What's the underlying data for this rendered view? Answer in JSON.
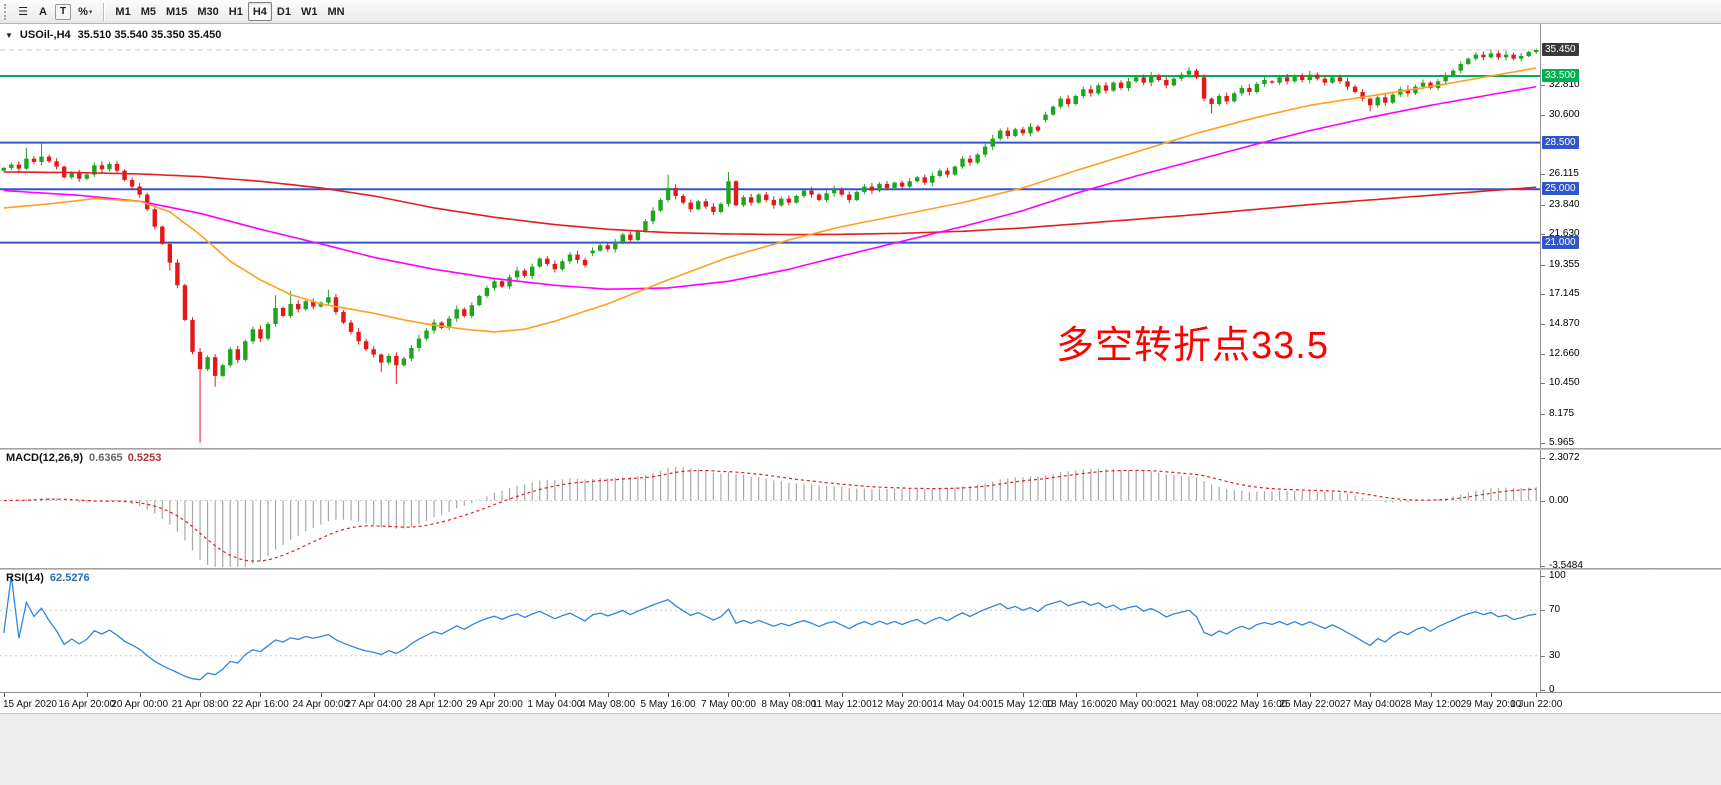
{
  "toolbar": {
    "icons": [
      {
        "name": "charts-list-icon",
        "glyph": "☰"
      },
      {
        "name": "font-tool-icon",
        "glyph": "A"
      },
      {
        "name": "text-label-tool-icon",
        "glyph": "T",
        "boxed": true
      },
      {
        "name": "percent-scale-icon",
        "glyph": "%",
        "caret": true
      }
    ],
    "timeframes": [
      "M1",
      "M5",
      "M15",
      "M30",
      "H1",
      "H4",
      "D1",
      "W1",
      "MN"
    ],
    "active_timeframe": "H4"
  },
  "chart": {
    "title": {
      "symbol_period": "USOil-,H4",
      "ohlc": "35.510 35.540 35.350 35.450"
    },
    "annotation": {
      "text": "多空转折点33.5",
      "color": "#ff0000"
    },
    "price_axis": {
      "labels": [
        "32.810",
        "30.600",
        "26.115",
        "23.840",
        "21.630",
        "19.355",
        "17.145",
        "14.870",
        "12.660",
        "10.450",
        "8.175",
        "5.965"
      ],
      "boxes": [
        {
          "text": "35.450",
          "color": "#3a3a3a",
          "name": "bid-price-badge"
        },
        {
          "text": "33.500",
          "color": "#00b050",
          "name": "green-level-badge"
        },
        {
          "text": "28.500",
          "color": "#3355cc",
          "name": "blue-level-badge"
        },
        {
          "text": "25.000",
          "color": "#3355cc",
          "name": "blue-level-badge"
        },
        {
          "text": "21.000",
          "color": "#3355cc",
          "name": "blue-level-badge"
        }
      ]
    }
  },
  "macd": {
    "label": "MACD(12,26,9)",
    "main_value": "0.6365",
    "signal_value": "0.5253",
    "axis_labels": [
      "2.3072",
      "0.00",
      "-3.5484"
    ]
  },
  "rsi": {
    "label": "RSI(14)",
    "value": "62.5276",
    "axis_labels": [
      "100",
      "70",
      "30",
      "0"
    ]
  },
  "time_axis": {
    "labels": [
      {
        "i": 0,
        "text": "15 Apr 2020"
      },
      {
        "i": 11,
        "text": "16 Apr 20:00"
      },
      {
        "i": 18,
        "text": "20 Apr 00:00"
      },
      {
        "i": 26,
        "text": "21 Apr 08:00"
      },
      {
        "i": 34,
        "text": "22 Apr 16:00"
      },
      {
        "i": 42,
        "text": "24 Apr 00:00"
      },
      {
        "i": 49,
        "text": "27 Apr 04:00"
      },
      {
        "i": 57,
        "text": "28 Apr 12:00"
      },
      {
        "i": 65,
        "text": "29 Apr 20:00"
      },
      {
        "i": 73,
        "text": "1 May 04:00"
      },
      {
        "i": 80,
        "text": "4 May 08:00"
      },
      {
        "i": 88,
        "text": "5 May 16:00"
      },
      {
        "i": 96,
        "text": "7 May 00:00"
      },
      {
        "i": 104,
        "text": "8 May 08:00"
      },
      {
        "i": 111,
        "text": "11 May 12:00"
      },
      {
        "i": 119,
        "text": "12 May 20:00"
      },
      {
        "i": 127,
        "text": "14 May 04:00"
      },
      {
        "i": 135,
        "text": "15 May 12:00"
      },
      {
        "i": 142,
        "text": "18 May 16:00"
      },
      {
        "i": 150,
        "text": "20 May 00:00"
      },
      {
        "i": 158,
        "text": "21 May 08:00"
      },
      {
        "i": 166,
        "text": "22 May 16:00"
      },
      {
        "i": 173,
        "text": "25 May 22:00"
      },
      {
        "i": 181,
        "text": "27 May 04:00"
      },
      {
        "i": 189,
        "text": "28 May 12:00"
      },
      {
        "i": 197,
        "text": "29 May 20:00"
      },
      {
        "i": 203,
        "text": "1 Jun 22:00"
      }
    ]
  },
  "chart_data": {
    "type": "candlestick",
    "symbol": "USOil-",
    "period": "H4",
    "price_top": 37.4,
    "price_bottom": 5.59,
    "bid": 35.45,
    "closes": [
      26.6,
      26.85,
      26.55,
      27.3,
      27.05,
      27.45,
      27.1,
      26.7,
      25.9,
      26.2,
      25.8,
      26.1,
      26.8,
      26.5,
      26.9,
      26.4,
      25.7,
      25.2,
      24.6,
      23.5,
      22.2,
      20.9,
      19.5,
      17.8,
      15.2,
      12.8,
      11.5,
      12.4,
      11.0,
      11.8,
      13.0,
      12.2,
      13.6,
      14.5,
      13.8,
      14.9,
      16.1,
      15.5,
      16.4,
      16.0,
      16.6,
      16.2,
      16.5,
      16.9,
      15.8,
      15.0,
      14.3,
      13.6,
      13.0,
      12.6,
      12.0,
      12.5,
      11.8,
      12.3,
      13.1,
      13.8,
      14.4,
      15.0,
      14.6,
      15.3,
      16.0,
      15.5,
      16.3,
      17.0,
      17.6,
      18.1,
      17.7,
      18.4,
      18.9,
      18.5,
      19.2,
      19.8,
      19.4,
      19.0,
      19.6,
      20.1,
      19.7,
      19.3,
      20.4,
      20.8,
      20.5,
      21.0,
      21.6,
      21.2,
      21.9,
      22.6,
      23.4,
      24.2,
      25.1,
      24.5,
      24.0,
      23.5,
      24.1,
      23.7,
      23.3,
      23.9,
      25.6,
      23.8,
      24.4,
      24.0,
      24.6,
      24.2,
      23.8,
      24.3,
      24.0,
      24.5,
      24.9,
      24.6,
      24.2,
      24.7,
      25.0,
      24.6,
      24.2,
      24.8,
      25.2,
      24.9,
      25.4,
      25.1,
      25.5,
      25.2,
      25.6,
      25.9,
      25.5,
      26.0,
      26.4,
      26.1,
      26.7,
      27.3,
      27.0,
      27.6,
      28.2,
      28.8,
      29.4,
      29.0,
      29.5,
      29.2,
      29.7,
      29.4,
      30.6,
      31.2,
      31.8,
      31.4,
      32.0,
      32.5,
      32.2,
      32.8,
      32.4,
      33.0,
      32.6,
      33.1,
      33.4,
      33.0,
      33.5,
      33.2,
      32.8,
      33.3,
      33.6,
      33.9,
      33.4,
      31.8,
      31.4,
      32.0,
      31.6,
      32.2,
      32.6,
      32.3,
      32.9,
      33.2,
      33.0,
      33.4,
      33.1,
      33.5,
      33.2,
      33.6,
      33.3,
      33.0,
      33.4,
      33.1,
      32.7,
      32.3,
      31.8,
      31.3,
      31.9,
      31.5,
      32.1,
      32.5,
      32.2,
      32.7,
      33.0,
      32.6,
      33.1,
      33.5,
      33.9,
      34.4,
      34.8,
      35.1,
      34.9,
      35.2,
      34.9,
      35.1,
      34.8,
      35.0,
      35.3,
      35.45
    ],
    "open_overrides": {
      "0": 26.4,
      "78": 20.2,
      "138": 30.2,
      "168": 33.1
    },
    "high_overrides": {
      "3": 28.1,
      "5": 28.5,
      "36": 17.05,
      "38": 17.35,
      "43": 17.45,
      "88": 26.1,
      "96": 26.3,
      "157": 34.15,
      "197": 35.5,
      "203": 35.55
    },
    "low_overrides": {
      "22": 18.9,
      "26": 6.0,
      "28": 10.2,
      "50": 11.3,
      "52": 10.4,
      "160": 30.7,
      "181": 30.85
    },
    "h_lines": [
      {
        "price": 33.5,
        "color": "#00b050"
      },
      {
        "price": 28.5,
        "color": "#3355cc"
      },
      {
        "price": 25.0,
        "color": "#3355cc"
      },
      {
        "price": 21.0,
        "color": "#3355cc"
      }
    ],
    "ma_lines": [
      {
        "name": "slow-ma-red",
        "color": "#e02020",
        "points": [
          [
            0,
            26.3
          ],
          [
            10,
            26.25
          ],
          [
            18,
            26.15
          ],
          [
            26,
            25.95
          ],
          [
            34,
            25.6
          ],
          [
            42,
            25.1
          ],
          [
            49,
            24.5
          ],
          [
            57,
            23.6
          ],
          [
            65,
            22.9
          ],
          [
            73,
            22.35
          ],
          [
            80,
            22.0
          ],
          [
            88,
            21.75
          ],
          [
            96,
            21.65
          ],
          [
            104,
            21.6
          ],
          [
            111,
            21.62
          ],
          [
            119,
            21.7
          ],
          [
            127,
            21.85
          ],
          [
            135,
            22.1
          ],
          [
            142,
            22.4
          ],
          [
            150,
            22.75
          ],
          [
            158,
            23.1
          ],
          [
            166,
            23.5
          ],
          [
            173,
            23.85
          ],
          [
            181,
            24.2
          ],
          [
            189,
            24.55
          ],
          [
            197,
            24.9
          ],
          [
            203,
            25.15
          ]
        ]
      },
      {
        "name": "medium-ma-magenta",
        "color": "#ff00ff",
        "points": [
          [
            0,
            24.9
          ],
          [
            10,
            24.55
          ],
          [
            18,
            24.1
          ],
          [
            26,
            23.2
          ],
          [
            34,
            22.0
          ],
          [
            42,
            20.9
          ],
          [
            49,
            19.9
          ],
          [
            57,
            19.0
          ],
          [
            65,
            18.3
          ],
          [
            73,
            17.8
          ],
          [
            80,
            17.5
          ],
          [
            88,
            17.6
          ],
          [
            96,
            18.1
          ],
          [
            104,
            19.0
          ],
          [
            111,
            20.0
          ],
          [
            119,
            21.1
          ],
          [
            127,
            22.2
          ],
          [
            135,
            23.4
          ],
          [
            142,
            24.7
          ],
          [
            150,
            26.0
          ],
          [
            158,
            27.2
          ],
          [
            166,
            28.4
          ],
          [
            173,
            29.4
          ],
          [
            181,
            30.4
          ],
          [
            189,
            31.3
          ],
          [
            197,
            32.1
          ],
          [
            203,
            32.7
          ]
        ]
      },
      {
        "name": "fast-ma-orange",
        "color": "#ffa020",
        "points": [
          [
            0,
            23.6
          ],
          [
            6,
            23.9
          ],
          [
            12,
            24.3
          ],
          [
            18,
            24.1
          ],
          [
            22,
            23.3
          ],
          [
            26,
            21.6
          ],
          [
            30,
            19.6
          ],
          [
            34,
            18.2
          ],
          [
            38,
            17.1
          ],
          [
            42,
            16.4
          ],
          [
            46,
            16.0
          ],
          [
            49,
            15.7
          ],
          [
            53,
            15.2
          ],
          [
            57,
            14.8
          ],
          [
            61,
            14.5
          ],
          [
            65,
            14.3
          ],
          [
            69,
            14.5
          ],
          [
            73,
            15.1
          ],
          [
            80,
            16.4
          ],
          [
            88,
            18.2
          ],
          [
            96,
            19.9
          ],
          [
            104,
            21.2
          ],
          [
            111,
            22.2
          ],
          [
            119,
            23.1
          ],
          [
            127,
            24.0
          ],
          [
            135,
            25.1
          ],
          [
            142,
            26.4
          ],
          [
            150,
            27.8
          ],
          [
            158,
            29.2
          ],
          [
            166,
            30.4
          ],
          [
            173,
            31.3
          ],
          [
            181,
            32.0
          ],
          [
            189,
            32.7
          ],
          [
            197,
            33.5
          ],
          [
            203,
            34.1
          ]
        ]
      }
    ],
    "macd": {
      "fast": 12,
      "slow": 26,
      "signal": 9,
      "panel_top": 2.74,
      "panel_bottom": -3.66,
      "axis_range": [
        -3.5484,
        2.3072
      ]
    },
    "rsi": {
      "period": 14,
      "levels": [
        70,
        30
      ],
      "axis_range": [
        0,
        100
      ]
    },
    "colors": {
      "up": "#1fa41f",
      "down": "#e51717",
      "macd_hist": "#a8a8a8",
      "macd_signal": "#e02020",
      "rsi": "#2e86de"
    }
  }
}
